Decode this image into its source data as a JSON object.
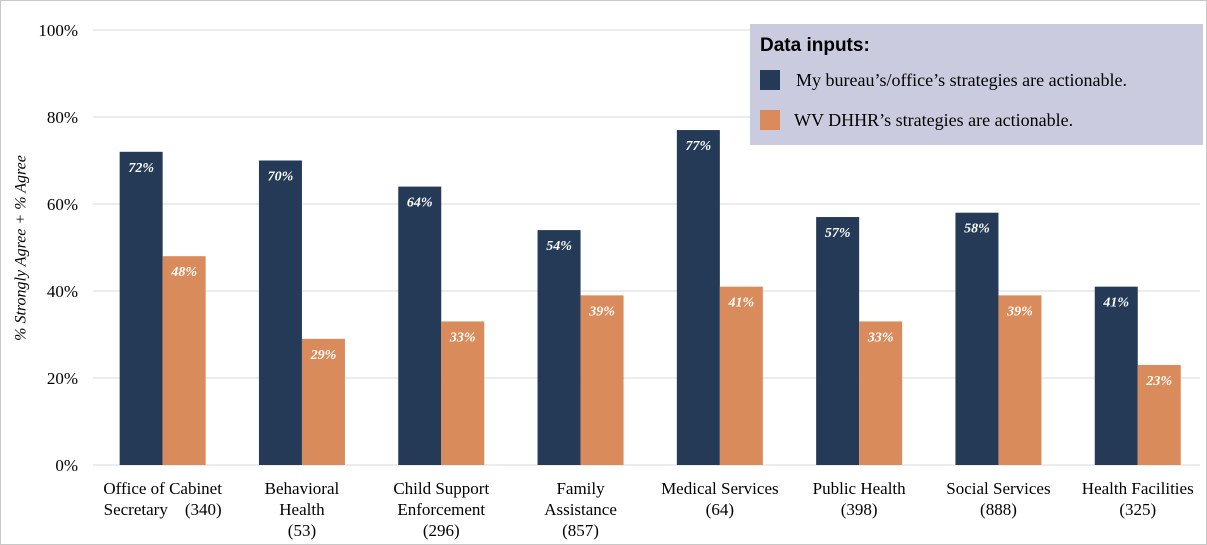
{
  "chart_data": {
    "type": "bar",
    "y_axis_label": "% Strongly Agree + % Agree",
    "categories": [
      [
        "Office of Cabinet",
        "Secretary    (340)"
      ],
      [
        "Behavioral",
        "Health",
        "(53)"
      ],
      [
        "Child Support",
        "Enforcement",
        "(296)"
      ],
      [
        "Family",
        "Assistance",
        "(857)"
      ],
      [
        "Medical Services",
        "(64)"
      ],
      [
        "Public Health",
        "(398)"
      ],
      [
        "Social Services",
        "(888)"
      ],
      [
        "Health Facilities",
        "(325)"
      ]
    ],
    "series": [
      {
        "name": "My bureau’s/office’s strategies are actionable.",
        "color": "#243a56",
        "values": [
          72,
          70,
          64,
          54,
          77,
          57,
          58,
          41
        ],
        "value_labels": [
          "72%",
          "70%",
          "64%",
          "54%",
          "77%",
          "57%",
          "58%",
          "41%"
        ]
      },
      {
        "name": "WV DHHR’s strategies are actionable.",
        "color": "#d98b5c",
        "values": [
          48,
          29,
          33,
          39,
          41,
          33,
          39,
          23
        ],
        "value_labels": [
          "48%",
          "29%",
          "33%",
          "39%",
          "41%",
          "33%",
          "39%",
          "23%"
        ]
      }
    ],
    "legend_title": "Data inputs:",
    "legend_position": "upper right",
    "ylim": [
      0,
      100
    ],
    "yticks": [
      {
        "value": 0,
        "label": "0%"
      },
      {
        "value": 20,
        "label": "20%"
      },
      {
        "value": 40,
        "label": "40%"
      },
      {
        "value": 60,
        "label": "60%"
      },
      {
        "value": 80,
        "label": "80%"
      },
      {
        "value": 100,
        "label": "100%"
      }
    ],
    "grid": true
  }
}
